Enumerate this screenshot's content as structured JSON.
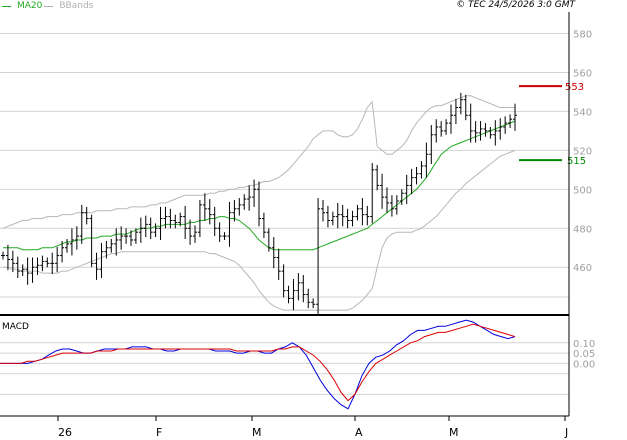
{
  "legend": {
    "ma20": {
      "label": "MA20",
      "color": "#22aa22"
    },
    "bbands": {
      "label": "BBands",
      "color": "#b0b0b0"
    }
  },
  "copyright": "© TEC 24/5/2026 3:0 GMT",
  "levels": {
    "resistance": {
      "label": "553",
      "value": 553,
      "color": "#cc0000"
    },
    "support": {
      "label": "515",
      "value": 515,
      "color": "#008800"
    }
  },
  "macd_panel": {
    "title": "MACD"
  },
  "chart_data": [
    {
      "type": "ohlc",
      "y_ticks": [
        "580",
        "560",
        "540",
        "520",
        "500",
        "480",
        "460"
      ],
      "y_tick_values": [
        580,
        560,
        540,
        520,
        500,
        480,
        460
      ],
      "ylim": [
        436,
        590
      ],
      "x_labels": [
        "26",
        "F",
        "M",
        "A",
        "M",
        "J"
      ],
      "close": [
        466,
        464,
        462,
        458,
        459,
        457,
        460,
        461,
        463,
        462,
        462,
        466,
        470,
        472,
        474,
        476,
        488,
        485,
        462,
        459,
        468,
        470,
        472,
        474,
        476,
        476,
        474,
        478,
        480,
        482,
        478,
        480,
        485,
        486,
        484,
        483,
        486,
        480,
        476,
        478,
        492,
        490,
        487,
        480,
        476,
        476,
        488,
        490,
        492,
        495,
        496,
        500,
        485,
        478,
        470,
        465,
        458,
        448,
        444,
        448,
        452,
        446,
        442,
        441,
        490,
        488,
        484,
        486,
        487,
        486,
        484,
        486,
        490,
        487,
        486,
        510,
        502,
        496,
        493,
        490,
        494,
        498,
        502,
        506,
        508,
        512,
        518,
        528,
        532,
        530,
        534,
        538,
        542,
        546,
        538,
        530,
        529,
        531,
        530,
        528,
        530,
        532,
        534,
        536,
        538
      ],
      "ma20": [
        470,
        470,
        470,
        470,
        469,
        469,
        469,
        469,
        470,
        470,
        470,
        471,
        472,
        473,
        473,
        474,
        474,
        475,
        475,
        475,
        476,
        476,
        476,
        477,
        477,
        477,
        478,
        479,
        480,
        480,
        480,
        481,
        481,
        482,
        482,
        482,
        482,
        482,
        483,
        483,
        484,
        484,
        485,
        485,
        486,
        486,
        485,
        485,
        484,
        482,
        480,
        477,
        474,
        472,
        470,
        469,
        469,
        469,
        469,
        469,
        469,
        469,
        469,
        469,
        470,
        471,
        472,
        473,
        474,
        475,
        476,
        477,
        478,
        479,
        480,
        482,
        484,
        486,
        488,
        490,
        492,
        494,
        496,
        498,
        500,
        503,
        506,
        510,
        514,
        518,
        520,
        522,
        523,
        524,
        525,
        526,
        527,
        528,
        529,
        530,
        531,
        532,
        533,
        534,
        535
      ],
      "bb_upper": [
        480,
        481,
        482,
        483,
        484,
        484,
        485,
        485,
        485,
        486,
        486,
        486,
        487,
        487,
        487,
        488,
        488,
        488,
        488,
        489,
        489,
        489,
        489,
        490,
        490,
        490,
        491,
        491,
        491,
        491,
        492,
        492,
        493,
        493,
        494,
        495,
        496,
        497,
        497,
        497,
        497,
        497,
        498,
        498,
        499,
        499,
        500,
        500,
        501,
        501,
        502,
        502,
        503,
        504,
        504,
        505,
        506,
        508,
        510,
        513,
        516,
        519,
        522,
        526,
        528,
        530,
        530,
        530,
        528,
        527,
        527,
        528,
        531,
        536,
        542,
        545,
        522,
        520,
        518,
        518,
        520,
        522,
        525,
        530,
        534,
        537,
        540,
        542,
        543,
        543,
        544,
        545,
        546,
        547,
        548,
        548,
        547,
        546,
        545,
        544,
        543,
        542,
        542,
        542,
        542
      ],
      "bb_lower": [
        460,
        460,
        459,
        459,
        458,
        458,
        458,
        458,
        457,
        457,
        457,
        457,
        458,
        458,
        459,
        460,
        461,
        462,
        463,
        464,
        465,
        466,
        467,
        467,
        468,
        468,
        468,
        468,
        468,
        468,
        468,
        468,
        468,
        468,
        468,
        468,
        468,
        468,
        468,
        468,
        468,
        468,
        467,
        467,
        466,
        465,
        464,
        463,
        461,
        458,
        455,
        452,
        448,
        445,
        442,
        440,
        439,
        438,
        438,
        438,
        438,
        438,
        438,
        438,
        438,
        438,
        438,
        438,
        438,
        438,
        438,
        439,
        441,
        443,
        446,
        449,
        460,
        470,
        475,
        477,
        478,
        478,
        478,
        478,
        479,
        480,
        482,
        484,
        486,
        489,
        492,
        495,
        498,
        500,
        503,
        505,
        507,
        509,
        511,
        513,
        515,
        517,
        518,
        519,
        520
      ],
      "macd_y_ticks": [
        "0.10",
        "0.05",
        "0.00"
      ],
      "macd_y_tick_values": [
        0.1,
        0.05,
        0.0
      ],
      "macd_ylim": [
        -0.25,
        0.22
      ],
      "macd": [
        0.0,
        0.0,
        0.0,
        0.0,
        0.0,
        0.01,
        0.02,
        0.04,
        0.06,
        0.07,
        0.07,
        0.06,
        0.05,
        0.05,
        0.06,
        0.07,
        0.07,
        0.07,
        0.07,
        0.08,
        0.08,
        0.08,
        0.07,
        0.07,
        0.06,
        0.06,
        0.07,
        0.07,
        0.07,
        0.07,
        0.07,
        0.06,
        0.06,
        0.06,
        0.05,
        0.05,
        0.06,
        0.06,
        0.05,
        0.05,
        0.07,
        0.08,
        0.1,
        0.08,
        0.04,
        -0.02,
        -0.08,
        -0.13,
        -0.17,
        -0.2,
        -0.22,
        -0.15,
        -0.06,
        0.0,
        0.03,
        0.04,
        0.06,
        0.09,
        0.11,
        0.14,
        0.16,
        0.16,
        0.17,
        0.18,
        0.18,
        0.19,
        0.2,
        0.21,
        0.2,
        0.18,
        0.16,
        0.14,
        0.13,
        0.12,
        0.13
      ],
      "macd_signal": [
        0.0,
        0.0,
        0.0,
        0.0,
        0.01,
        0.01,
        0.02,
        0.03,
        0.04,
        0.05,
        0.05,
        0.05,
        0.05,
        0.05,
        0.06,
        0.06,
        0.06,
        0.07,
        0.07,
        0.07,
        0.07,
        0.07,
        0.07,
        0.07,
        0.07,
        0.07,
        0.07,
        0.07,
        0.07,
        0.07,
        0.07,
        0.07,
        0.07,
        0.07,
        0.06,
        0.06,
        0.06,
        0.06,
        0.06,
        0.06,
        0.07,
        0.07,
        0.08,
        0.08,
        0.06,
        0.04,
        0.01,
        -0.03,
        -0.08,
        -0.14,
        -0.18,
        -0.15,
        -0.09,
        -0.04,
        0.0,
        0.02,
        0.04,
        0.06,
        0.08,
        0.1,
        0.11,
        0.13,
        0.14,
        0.15,
        0.15,
        0.16,
        0.17,
        0.18,
        0.19,
        0.18,
        0.17,
        0.16,
        0.15,
        0.14,
        0.13
      ]
    }
  ]
}
